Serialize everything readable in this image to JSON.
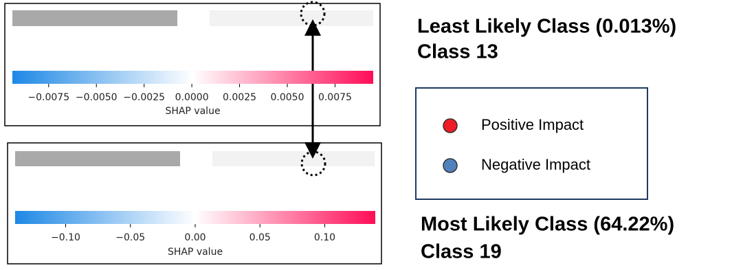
{
  "panels": [
    {
      "title": "Least Likely Class (0.013%)",
      "subtitle": "Class 13",
      "chart_data": {
        "type": "colorbar",
        "xlabel": "SHAP value",
        "xlim": [
          -0.0094,
          0.0095
        ],
        "xticks": [
          {
            "value": -0.0075,
            "label": "−0.0075"
          },
          {
            "value": -0.005,
            "label": "−0.0050"
          },
          {
            "value": -0.0025,
            "label": "−0.0025"
          },
          {
            "value": 0,
            "label": "0.0000"
          },
          0.0025,
          {
            "value": 0.005,
            "label": "0.0050"
          },
          0.0075
        ],
        "colors": [
          "#1e88e5",
          "#ffffff",
          "#ff0d57"
        ]
      }
    },
    {
      "title": "Most Likely Class (64.22%)",
      "subtitle": "Class 19",
      "chart_data": {
        "type": "colorbar",
        "xlabel": "SHAP value",
        "xlim": [
          -0.139,
          0.139
        ],
        "xticks": [
          {
            "value": -0.1,
            "label": "−0.10"
          },
          {
            "value": -0.05,
            "label": "−0.05"
          },
          {
            "value": 0,
            "label": "0.00"
          },
          0.05,
          {
            "value": 0.1,
            "label": "0.10"
          }
        ],
        "colors": [
          "#1e88e5",
          "#ffffff",
          "#ff0d57"
        ]
      }
    }
  ],
  "legend": [
    {
      "label": "Positive Impact",
      "color": "#ee1c25"
    },
    {
      "label": "Negative Impact",
      "color": "#4f81bd"
    }
  ]
}
